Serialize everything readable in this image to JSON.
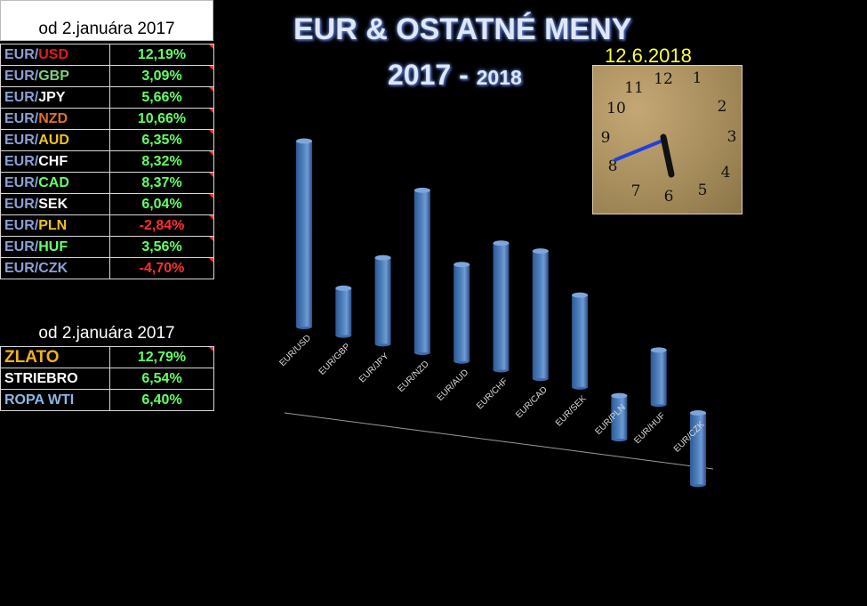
{
  "header": {
    "period_label": "od 2.januára  2017"
  },
  "title": {
    "main": "EUR & OSTATNÉ MENY",
    "year_main": "2017",
    "year_sep": " - ",
    "year_small": "2018"
  },
  "clock": {
    "date": "12.6.2018",
    "numbers": [
      "12",
      "1",
      "2",
      "3",
      "4",
      "5",
      "6",
      "7",
      "8",
      "9",
      "10",
      "11"
    ],
    "hour_hand_color": "#111111",
    "minute_hand_color": "#2040e0"
  },
  "currency_table": {
    "rows": [
      {
        "base": "EUR",
        "sep": "/",
        "quote": "USD",
        "quote_color": "#e41a1a",
        "value": "12,19%",
        "value_color": "#66ff66"
      },
      {
        "base": "EUR",
        "sep": "/",
        "quote": "GBP",
        "quote_color": "#7fd07f",
        "value": "3,09%",
        "value_color": "#66ff66"
      },
      {
        "base": "EUR",
        "sep": "/",
        "quote": "JPY",
        "quote_color": "#ffffff",
        "value": "5,66%",
        "value_color": "#66ff66"
      },
      {
        "base": "EUR",
        "sep": "/",
        "quote": "NZD",
        "quote_color": "#e0702a",
        "value": "10,66%",
        "value_color": "#66ff66"
      },
      {
        "base": "EUR",
        "sep": "/",
        "quote": "AUD",
        "quote_color": "#f0c020",
        "value": "6,35%",
        "value_color": "#66ff66"
      },
      {
        "base": "EUR",
        "sep": "/",
        "quote": "CHF",
        "quote_color": "#ffffff",
        "value": "8,32%",
        "value_color": "#66ff66"
      },
      {
        "base": "EUR",
        "sep": "/",
        "quote": "CAD",
        "quote_color": "#66ff66",
        "value": "8,37%",
        "value_color": "#66ff66"
      },
      {
        "base": "EUR",
        "sep": "/",
        "quote": "SEK",
        "quote_color": "#ffffff",
        "value": "6,04%",
        "value_color": "#66ff66"
      },
      {
        "base": "EUR",
        "sep": "/",
        "quote": "PLN",
        "quote_color": "#f0c020",
        "value": "-2,84%",
        "value_color": "#ff3030"
      },
      {
        "base": "EUR",
        "sep": "/",
        "quote": "HUF",
        "quote_color": "#66ff66",
        "value": "3,56%",
        "value_color": "#66ff66"
      },
      {
        "base": "EUR",
        "sep": "/",
        "quote": "CZK",
        "quote_color": "#8aa0d8",
        "value": "-4,70%",
        "value_color": "#ff3030"
      }
    ]
  },
  "commodities": {
    "period_label": "od 2.januára 2017",
    "rows": [
      {
        "name": "ZLATO",
        "name_color": "#f0b020",
        "value": "12,79%",
        "value_color": "#66ff66"
      },
      {
        "name": "STRIEBRO",
        "name_color": "#ffffff",
        "value": "6,54%",
        "value_color": "#66ff66"
      },
      {
        "name": "ROPA WTI",
        "name_color": "#8ab8e8",
        "value": "6,40%",
        "value_color": "#66ff66"
      }
    ]
  },
  "chart_data": {
    "type": "bar",
    "categories": [
      "EUR/USD",
      "EUR/GBP",
      "EUR/JPY",
      "EUR/NZD",
      "EUR/AUD",
      "EUR/CHF",
      "EUR/CAD",
      "EUR/SEK",
      "EUR/PLN",
      "EUR/HUF",
      "EUR/CZK"
    ],
    "values": [
      12.19,
      3.09,
      5.66,
      10.66,
      6.35,
      8.32,
      8.37,
      6.04,
      -2.84,
      3.56,
      -4.7
    ],
    "bar_color": "#4f81bd",
    "grid": false,
    "legend": "none"
  }
}
